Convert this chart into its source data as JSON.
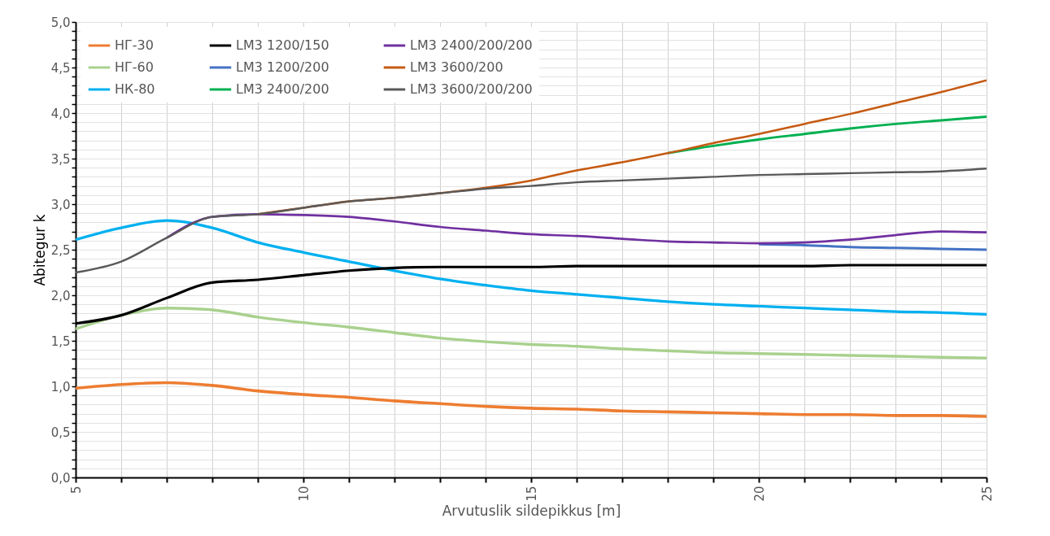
{
  "chart_data": {
    "type": "line",
    "xlabel": "Arvutuslik sildepikkus [m]",
    "ylabel": "Abitegur k",
    "x": [
      5,
      6,
      7,
      8,
      9,
      10,
      11,
      12,
      13,
      14,
      15,
      16,
      17,
      18,
      19,
      20,
      21,
      22,
      23,
      24,
      25
    ],
    "series": [
      {
        "name": "НГ-30",
        "color": "#ed7d31",
        "values": [
          0.98,
          1.02,
          1.04,
          1.01,
          0.95,
          0.91,
          0.88,
          0.84,
          0.81,
          0.78,
          0.76,
          0.75,
          0.73,
          0.72,
          0.71,
          0.7,
          0.69,
          0.69,
          0.68,
          0.68,
          0.67
        ]
      },
      {
        "name": "НГ-60",
        "color": "#a9d18e",
        "values": [
          1.63,
          1.78,
          1.86,
          1.84,
          1.76,
          1.7,
          1.65,
          1.59,
          1.53,
          1.49,
          1.46,
          1.44,
          1.41,
          1.39,
          1.37,
          1.36,
          1.35,
          1.34,
          1.33,
          1.32,
          1.31
        ]
      },
      {
        "name": "НК-80",
        "color": "#00b0f0",
        "values": [
          2.61,
          2.74,
          2.82,
          2.74,
          2.58,
          2.47,
          2.37,
          2.27,
          2.18,
          2.11,
          2.05,
          2.01,
          1.97,
          1.93,
          1.9,
          1.88,
          1.86,
          1.84,
          1.82,
          1.81,
          1.79
        ]
      },
      {
        "name": "LM3 1200/150",
        "color": "#000000",
        "values": [
          1.69,
          1.78,
          1.97,
          2.14,
          2.17,
          2.22,
          2.27,
          2.3,
          2.31,
          2.31,
          2.31,
          2.32,
          2.32,
          2.32,
          2.32,
          2.32,
          2.32,
          2.33,
          2.33,
          2.33,
          2.33
        ]
      },
      {
        "name": "LM3 1200/200",
        "color": "#4472c4",
        "values": [
          null,
          null,
          null,
          null,
          null,
          null,
          null,
          null,
          null,
          null,
          null,
          null,
          null,
          null,
          null,
          2.56,
          2.55,
          2.53,
          2.52,
          2.51,
          2.5
        ]
      },
      {
        "name": "LM3 2400/200",
        "color": "#00b050",
        "values": [
          null,
          null,
          null,
          null,
          null,
          null,
          null,
          null,
          null,
          null,
          null,
          null,
          null,
          3.56,
          3.64,
          3.71,
          3.77,
          3.83,
          3.88,
          3.92,
          3.96
        ]
      },
      {
        "name": "LM3 2400/200/200",
        "color": "#7030a0",
        "values": [
          null,
          null,
          2.63,
          2.86,
          2.89,
          2.88,
          2.86,
          2.81,
          2.75,
          2.71,
          2.67,
          2.65,
          2.62,
          2.59,
          2.58,
          2.57,
          2.58,
          2.61,
          2.66,
          2.7,
          2.69
        ]
      },
      {
        "name": "LM3 3600/200",
        "color": "#c55a11",
        "values": [
          null,
          null,
          null,
          null,
          2.89,
          2.96,
          3.03,
          3.07,
          3.12,
          3.18,
          3.26,
          3.37,
          3.46,
          3.56,
          3.67,
          3.77,
          3.88,
          3.99,
          4.11,
          4.23,
          4.36
        ]
      },
      {
        "name": "LM3 3600/200/200",
        "color": "#595959",
        "values": [
          2.25,
          2.37,
          2.63,
          2.86,
          2.89,
          2.96,
          3.03,
          3.07,
          3.12,
          3.17,
          3.2,
          3.24,
          3.26,
          3.28,
          3.3,
          3.32,
          3.33,
          3.34,
          3.35,
          3.36,
          3.39
        ]
      }
    ],
    "xlim": [
      5,
      25
    ],
    "xticks": [
      5,
      {
        "value": 6,
        "label": null
      },
      {
        "value": 7,
        "label": null
      },
      {
        "value": 8,
        "label": null
      },
      {
        "value": 9,
        "label": null
      },
      10,
      {
        "value": 11,
        "label": null
      },
      {
        "value": 12,
        "label": null
      },
      {
        "value": 13,
        "label": null
      },
      {
        "value": 14,
        "label": null
      },
      15,
      {
        "value": 16,
        "label": null
      },
      {
        "value": 17,
        "label": null
      },
      {
        "value": 18,
        "label": null
      },
      {
        "value": 19,
        "label": null
      },
      20,
      {
        "value": 21,
        "label": null
      },
      {
        "value": 22,
        "label": null
      },
      {
        "value": 23,
        "label": null
      },
      {
        "value": 24,
        "label": null
      },
      25
    ],
    "ylim": [
      0,
      5
    ],
    "yticks": [
      {
        "value": 0,
        "label": "0,0"
      },
      {
        "value": 0.1,
        "label": null
      },
      {
        "value": 0.2,
        "label": null
      },
      {
        "value": 0.3,
        "label": null
      },
      {
        "value": 0.4,
        "label": null
      },
      {
        "value": 0.5,
        "label": "0,5"
      },
      {
        "value": 0.6,
        "label": null
      },
      {
        "value": 0.7,
        "label": null
      },
      {
        "value": 0.8,
        "label": null
      },
      {
        "value": 0.9,
        "label": null
      },
      {
        "value": 1,
        "label": "1,0"
      },
      {
        "value": 1.1,
        "label": null
      },
      {
        "value": 1.2,
        "label": null
      },
      {
        "value": 1.3,
        "label": null
      },
      {
        "value": 1.4,
        "label": null
      },
      {
        "value": 1.5,
        "label": "1,5"
      },
      {
        "value": 1.6,
        "label": null
      },
      {
        "value": 1.7,
        "label": null
      },
      {
        "value": 1.8,
        "label": null
      },
      {
        "value": 1.9,
        "label": null
      },
      {
        "value": 2,
        "label": "2,0"
      },
      {
        "value": 2.1,
        "label": null
      },
      {
        "value": 2.2,
        "label": null
      },
      {
        "value": 2.3,
        "label": null
      },
      {
        "value": 2.4,
        "label": null
      },
      {
        "value": 2.5,
        "label": "2,5"
      },
      {
        "value": 2.6,
        "label": null
      },
      {
        "value": 2.7,
        "label": null
      },
      {
        "value": 2.8,
        "label": null
      },
      {
        "value": 2.9,
        "label": null
      },
      {
        "value": 3,
        "label": "3,0"
      },
      {
        "value": 3.1,
        "label": null
      },
      {
        "value": 3.2,
        "label": null
      },
      {
        "value": 3.3,
        "label": null
      },
      {
        "value": 3.4,
        "label": null
      },
      {
        "value": 3.5,
        "label": "3,5"
      },
      {
        "value": 3.6,
        "label": null
      },
      {
        "value": 3.7,
        "label": null
      },
      {
        "value": 3.8,
        "label": null
      },
      {
        "value": 3.9,
        "label": null
      },
      {
        "value": 4,
        "label": "4,0"
      },
      {
        "value": 4.1,
        "label": null
      },
      {
        "value": 4.2,
        "label": null
      },
      {
        "value": 4.3,
        "label": null
      },
      {
        "value": 4.4,
        "label": null
      },
      {
        "value": 4.5,
        "label": "4,5"
      },
      {
        "value": 4.6,
        "label": null
      },
      {
        "value": 4.7,
        "label": null
      },
      {
        "value": 4.8,
        "label": null
      },
      {
        "value": 4.9,
        "label": null
      },
      {
        "value": 5,
        "label": "5,0"
      }
    ],
    "grid": true,
    "legend": "top",
    "line_style": "solid"
  }
}
